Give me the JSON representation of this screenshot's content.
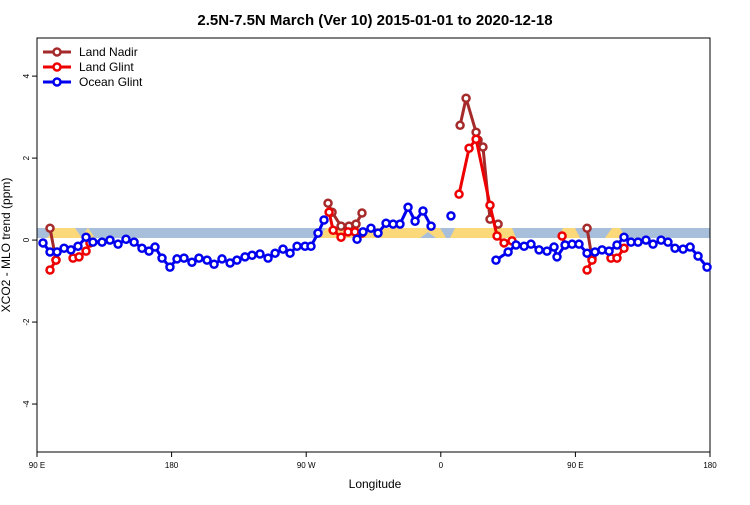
{
  "chart_data": {
    "type": "line",
    "title": "2.5N-7.5N March (Ver 10)   2015-01-01 to 2020-12-18",
    "x_label": "Longitude",
    "y_label": "XCO2 - MLO trend (ppm)",
    "xlim": [
      90,
      540
    ],
    "ylim": [
      -5.17,
      4.93
    ],
    "xticks": [
      {
        "value": 90,
        "label": "90 E"
      },
      180,
      {
        "value": 270,
        "label": "90 W"
      },
      {
        "value": 360,
        "label": "0"
      },
      {
        "value": 450,
        "label": "90 E"
      },
      {
        "value": 540,
        "label": "180"
      }
    ],
    "yticks": [
      -4,
      -2,
      0,
      2,
      4
    ],
    "legend": "top-left",
    "series": [
      {
        "name": "Land Nadir",
        "color": "#a52a2a",
        "x": [
          98.7,
          102.7,
          null,
          284.6,
          287.3,
          293.3,
          298.6,
          303.3,
          307.3,
          null,
          372.9,
          376.9,
          383.6,
          384.9,
          388.2,
          392.9,
          398.3,
          null,
          457.8,
          461.1
        ],
        "values": [
          0.29,
          -0.49,
          null,
          0.9,
          0.68,
          0.34,
          0.34,
          0.39,
          0.66,
          null,
          2.8,
          3.46,
          2.63,
          2.44,
          2.27,
          0.51,
          0.39,
          null,
          0.29,
          -0.44
        ]
      },
      {
        "name": "Land Glint",
        "color": "#ee0000",
        "x": [
          98.7,
          102.7,
          null,
          114.1,
          118.1,
          122.8,
          125.4,
          null,
          285.3,
          288.0,
          293.3,
          298.0,
          302.6,
          307.3,
          null,
          372.2,
          378.9,
          383.6,
          392.9,
          397.6,
          402.3,
          407.6,
          null,
          441.1,
          443.1,
          null,
          457.8,
          461.1,
          null,
          473.8,
          477.8,
          482.5
        ],
        "values": [
          -0.73,
          -0.49,
          null,
          -0.44,
          -0.41,
          -0.27,
          -0.07,
          null,
          0.68,
          0.24,
          0.07,
          0.2,
          0.2,
          0.17,
          null,
          1.12,
          2.24,
          2.46,
          0.85,
          0.1,
          -0.07,
          -0.02,
          null,
          0.1,
          -0.12,
          null,
          -0.73,
          -0.49,
          null,
          -0.44,
          -0.44,
          -0.2
        ]
      },
      {
        "name": "Ocean Glint",
        "color": "#0000ee",
        "x": [
          94.0,
          98.7,
          103.4,
          108.1,
          112.7,
          117.4,
          122.8,
          127.4,
          133.5,
          138.8,
          144.2,
          149.5,
          154.9,
          160.2,
          164.9,
          168.9,
          173.6,
          178.9,
          183.6,
          188.3,
          193.6,
          198.3,
          203.7,
          208.4,
          213.7,
          219.1,
          223.7,
          229.1,
          233.8,
          239.1,
          244.5,
          249.2,
          254.5,
          259.2,
          263.9,
          269.2,
          273.2,
          277.9,
          281.9,
          null,
          304.0,
          308.0,
          313.3,
          318.0,
          323.4,
          328.1,
          332.7,
          338.1,
          342.8,
          348.1,
          353.5,
          null,
          366.8,
          null,
          396.9,
          405.0,
          410.3,
          415.7,
          420.3,
          425.7,
          431.0,
          435.7,
          437.7,
          443.1,
          447.8,
          452.4,
          457.8,
          463.1,
          467.8,
          472.5,
          477.8,
          482.5,
          487.2,
          491.9,
          497.2,
          501.9,
          507.3,
          511.9,
          516.6,
          522.0,
          526.7,
          532.0,
          538.0
        ],
        "values": [
          -0.07,
          -0.29,
          -0.29,
          -0.2,
          -0.24,
          -0.15,
          0.07,
          -0.05,
          -0.05,
          0,
          -0.1,
          0.02,
          -0.05,
          -0.2,
          -0.27,
          -0.17,
          -0.44,
          -0.66,
          -0.46,
          -0.44,
          -0.54,
          -0.44,
          -0.49,
          -0.59,
          -0.46,
          -0.56,
          -0.49,
          -0.41,
          -0.37,
          -0.34,
          -0.44,
          -0.32,
          -0.22,
          -0.32,
          -0.15,
          -0.15,
          -0.15,
          0.17,
          0.49,
          null,
          0.02,
          0.2,
          0.29,
          0.17,
          0.41,
          0.39,
          0.39,
          0.8,
          0.46,
          0.71,
          0.34,
          null,
          0.59,
          null,
          -0.49,
          -0.29,
          -0.12,
          -0.15,
          -0.1,
          -0.24,
          -0.27,
          -0.17,
          -0.41,
          -0.12,
          -0.1,
          -0.1,
          -0.32,
          -0.29,
          -0.24,
          -0.27,
          -0.12,
          0.07,
          -0.05,
          -0.05,
          0,
          -0.1,
          0,
          -0.05,
          -0.2,
          -0.22,
          -0.17,
          -0.39,
          -0.66
        ]
      }
    ]
  }
}
